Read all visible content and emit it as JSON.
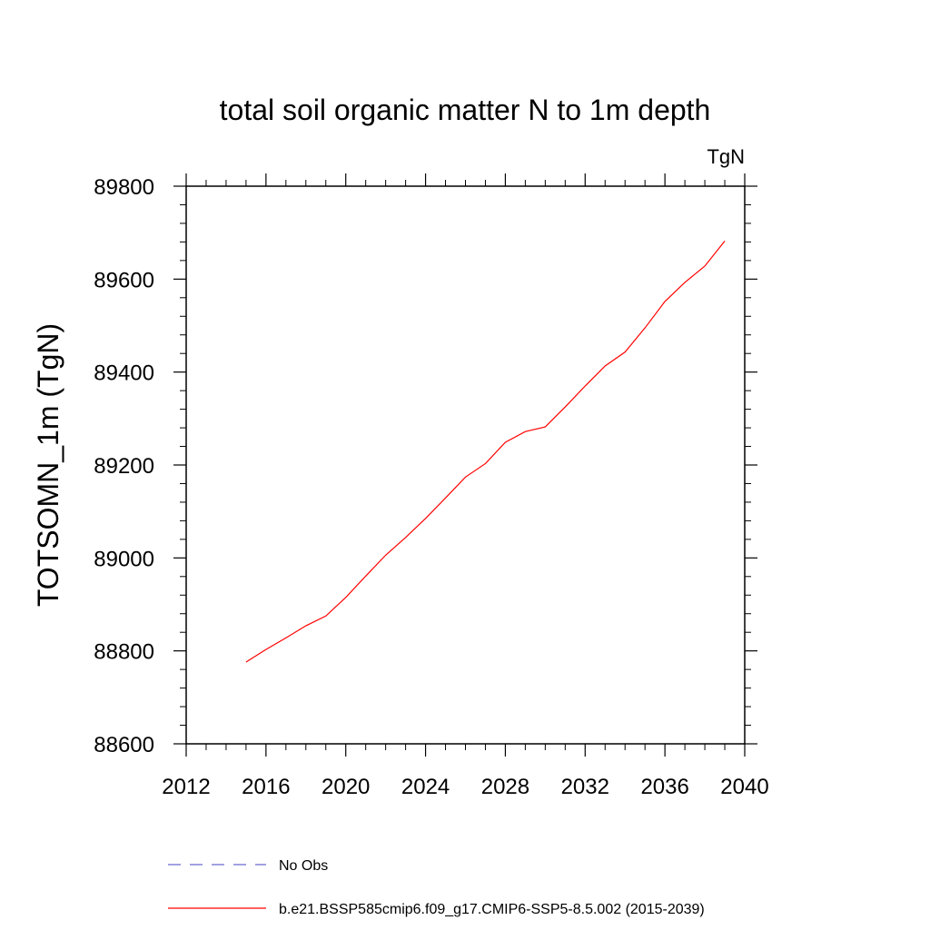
{
  "chart_data": {
    "type": "line",
    "title": "total soil organic matter N to 1m depth",
    "subtitle": "TgN",
    "ylabel": "TOTSOMN_1m  (TgN)",
    "xlabel": "",
    "xlim": [
      2012,
      2040
    ],
    "ylim": [
      88600,
      89800
    ],
    "xticks": [
      2012,
      2016,
      2020,
      2024,
      2028,
      2032,
      2036,
      2040
    ],
    "yticks": [
      88600,
      88800,
      89000,
      89200,
      89400,
      89600,
      89800
    ],
    "grid": false,
    "legend_position": "bottom",
    "series": [
      {
        "name": "No Obs",
        "color": "#6a6ad0",
        "dash": "dashed",
        "x": [],
        "y": []
      },
      {
        "name": "b.e21.BSSP585cmip6.f09_g17.CMIP6-SSP5-8.5.002 (2015-2039)",
        "color": "#ff0000",
        "dash": "solid",
        "x": [
          2015,
          2016,
          2017,
          2018,
          2019,
          2020,
          2021,
          2022,
          2023,
          2024,
          2025,
          2026,
          2027,
          2028,
          2029,
          2030,
          2031,
          2032,
          2033,
          2034,
          2035,
          2036,
          2037,
          2038,
          2039
        ],
        "y": [
          88776,
          88803,
          88828,
          88854,
          88875,
          88915,
          88961,
          89006,
          89044,
          89085,
          89129,
          89174,
          89203,
          89249,
          89272,
          89282,
          89325,
          89370,
          89413,
          89443,
          89495,
          89552,
          89593,
          89628,
          89682
        ]
      }
    ]
  }
}
